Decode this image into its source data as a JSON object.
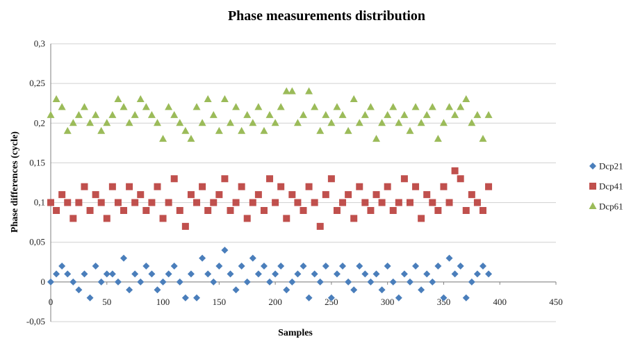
{
  "chart_data": {
    "type": "scatter",
    "title": "Phase measurements distribution",
    "xlabel": "Samples",
    "ylabel": "Phase differences (cycle)",
    "xlim": [
      0,
      450
    ],
    "ylim": [
      -0.05,
      0.3
    ],
    "x_ticks": [
      "0",
      "50",
      "100",
      "150",
      "200",
      "250",
      "300",
      "350",
      "400",
      "450"
    ],
    "y_ticks": [
      "-0,05",
      "0",
      "0,05",
      "0,1",
      "0,15",
      "0,2",
      "0,25",
      "0,3"
    ],
    "grid": "horizontal",
    "legend_position": "right",
    "series": [
      {
        "name": "Dcp21",
        "color": "#4a7ebb",
        "marker": "diamond",
        "x": [
          0,
          5,
          10,
          15,
          20,
          25,
          30,
          35,
          40,
          45,
          50,
          55,
          60,
          65,
          70,
          75,
          80,
          85,
          90,
          95,
          100,
          105,
          110,
          115,
          120,
          125,
          130,
          135,
          140,
          145,
          150,
          155,
          160,
          165,
          170,
          175,
          180,
          185,
          190,
          195,
          200,
          205,
          210,
          215,
          220,
          225,
          230,
          235,
          240,
          245,
          250,
          255,
          260,
          265,
          270,
          275,
          280,
          285,
          290,
          295,
          300,
          305,
          310,
          315,
          320,
          325,
          330,
          335,
          340,
          345,
          350,
          355,
          360,
          365,
          370,
          375,
          380,
          385,
          390
        ],
        "y": [
          0.0,
          0.01,
          0.02,
          0.01,
          0.0,
          -0.01,
          0.01,
          -0.02,
          0.02,
          0.0,
          0.01,
          0.01,
          0.0,
          0.03,
          -0.01,
          0.01,
          0.0,
          0.02,
          0.01,
          -0.01,
          0.0,
          0.01,
          0.02,
          0.0,
          -0.02,
          0.01,
          -0.02,
          0.03,
          0.01,
          0.0,
          0.02,
          0.04,
          0.01,
          -0.01,
          0.02,
          0.0,
          0.03,
          0.01,
          0.02,
          0.0,
          0.01,
          0.02,
          -0.01,
          0.0,
          0.01,
          0.02,
          -0.02,
          0.01,
          0.0,
          0.02,
          -0.02,
          0.01,
          0.02,
          0.0,
          -0.01,
          0.02,
          0.01,
          0.0,
          0.01,
          -0.01,
          0.02,
          0.0,
          -0.02,
          0.01,
          0.0,
          0.02,
          -0.01,
          0.01,
          0.0,
          0.02,
          -0.02,
          0.03,
          0.01,
          0.02,
          -0.02,
          0.0,
          0.01,
          0.02,
          0.01
        ]
      },
      {
        "name": "Dcp41",
        "color": "#c0504d",
        "marker": "square",
        "x": [
          0,
          5,
          10,
          15,
          20,
          25,
          30,
          35,
          40,
          45,
          50,
          55,
          60,
          65,
          70,
          75,
          80,
          85,
          90,
          95,
          100,
          105,
          110,
          115,
          120,
          125,
          130,
          135,
          140,
          145,
          150,
          155,
          160,
          165,
          170,
          175,
          180,
          185,
          190,
          195,
          200,
          205,
          210,
          215,
          220,
          225,
          230,
          235,
          240,
          245,
          250,
          255,
          260,
          265,
          270,
          275,
          280,
          285,
          290,
          295,
          300,
          305,
          310,
          315,
          320,
          325,
          330,
          335,
          340,
          345,
          350,
          355,
          360,
          365,
          370,
          375,
          380,
          385,
          390
        ],
        "y": [
          0.1,
          0.09,
          0.11,
          0.1,
          0.08,
          0.1,
          0.12,
          0.09,
          0.11,
          0.1,
          0.08,
          0.12,
          0.1,
          0.09,
          0.12,
          0.1,
          0.11,
          0.09,
          0.1,
          0.12,
          0.08,
          0.1,
          0.13,
          0.09,
          0.07,
          0.11,
          0.1,
          0.12,
          0.09,
          0.1,
          0.11,
          0.13,
          0.09,
          0.1,
          0.12,
          0.08,
          0.1,
          0.11,
          0.09,
          0.13,
          0.1,
          0.12,
          0.08,
          0.11,
          0.1,
          0.09,
          0.12,
          0.1,
          0.07,
          0.11,
          0.13,
          0.09,
          0.1,
          0.11,
          0.08,
          0.12,
          0.1,
          0.09,
          0.11,
          0.1,
          0.12,
          0.09,
          0.1,
          0.13,
          0.1,
          0.12,
          0.08,
          0.11,
          0.1,
          0.09,
          0.12,
          0.1,
          0.14,
          0.13,
          0.09,
          0.11,
          0.1,
          0.09,
          0.12
        ]
      },
      {
        "name": "Dcp61",
        "color": "#9bbb59",
        "marker": "triangle",
        "x": [
          0,
          5,
          10,
          15,
          20,
          25,
          30,
          35,
          40,
          45,
          50,
          55,
          60,
          65,
          70,
          75,
          80,
          85,
          90,
          95,
          100,
          105,
          110,
          115,
          120,
          125,
          130,
          135,
          140,
          145,
          150,
          155,
          160,
          165,
          170,
          175,
          180,
          185,
          190,
          195,
          200,
          205,
          210,
          215,
          220,
          225,
          230,
          235,
          240,
          245,
          250,
          255,
          260,
          265,
          270,
          275,
          280,
          285,
          290,
          295,
          300,
          305,
          310,
          315,
          320,
          325,
          330,
          335,
          340,
          345,
          350,
          355,
          360,
          365,
          370,
          375,
          380,
          385,
          390
        ],
        "y": [
          0.21,
          0.23,
          0.22,
          0.19,
          0.2,
          0.21,
          0.22,
          0.2,
          0.21,
          0.19,
          0.2,
          0.21,
          0.23,
          0.22,
          0.2,
          0.21,
          0.23,
          0.22,
          0.21,
          0.2,
          0.18,
          0.22,
          0.21,
          0.2,
          0.19,
          0.18,
          0.22,
          0.2,
          0.23,
          0.21,
          0.19,
          0.23,
          0.2,
          0.22,
          0.19,
          0.21,
          0.2,
          0.22,
          0.19,
          0.21,
          0.2,
          0.22,
          0.24,
          0.24,
          0.2,
          0.21,
          0.24,
          0.22,
          0.19,
          0.21,
          0.2,
          0.22,
          0.21,
          0.19,
          0.23,
          0.2,
          0.21,
          0.22,
          0.18,
          0.2,
          0.21,
          0.22,
          0.2,
          0.21,
          0.19,
          0.22,
          0.2,
          0.21,
          0.22,
          0.18,
          0.2,
          0.22,
          0.21,
          0.22,
          0.23,
          0.2,
          0.21,
          0.18,
          0.21
        ]
      }
    ]
  }
}
